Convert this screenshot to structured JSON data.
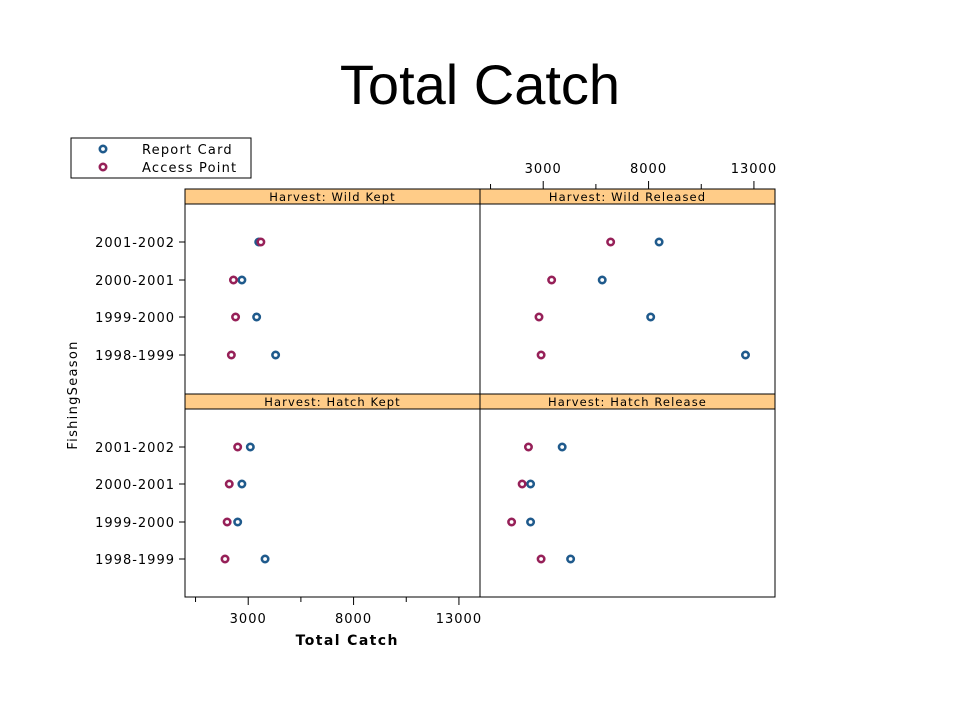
{
  "slide": {
    "title": "Total Catch"
  },
  "chart_data": {
    "type": "scatter",
    "title": "",
    "xlabel": "Total Catch",
    "ylabel": "FishingSeason",
    "xlim": [
      0,
      14000
    ],
    "x_ticks": [
      3000,
      8000,
      13000
    ],
    "categories": [
      "2001-2002",
      "2000-2001",
      "1999-2000",
      "1998-1999"
    ],
    "legend": {
      "position": "top-left"
    },
    "colors": {
      "Report Card": "#1f5a8c",
      "Access Point": "#962058",
      "strip": "#ffcc88"
    },
    "series": [
      {
        "name": "Report Card"
      },
      {
        "name": "Access Point"
      }
    ],
    "panels": [
      {
        "title": "Harvest: Wild Kept",
        "values": {
          "Report Card": [
            3500,
            2700,
            3400,
            4300
          ],
          "Access Point": [
            3600,
            2300,
            2400,
            2200
          ]
        }
      },
      {
        "title": "Harvest: Wild Released",
        "values": {
          "Report Card": [
            8500,
            5800,
            8100,
            12600
          ],
          "Access Point": [
            6200,
            3400,
            2800,
            2900
          ]
        }
      },
      {
        "title": "Harvest: Hatch Kept",
        "values": {
          "Report Card": [
            3100,
            2700,
            2500,
            3800
          ],
          "Access Point": [
            2500,
            2100,
            2000,
            1900
          ]
        }
      },
      {
        "title": "Harvest: Hatch Release",
        "values": {
          "Report Card": [
            3900,
            2400,
            2400,
            4300
          ],
          "Access Point": [
            2300,
            2000,
            1500,
            2900
          ]
        }
      }
    ]
  }
}
